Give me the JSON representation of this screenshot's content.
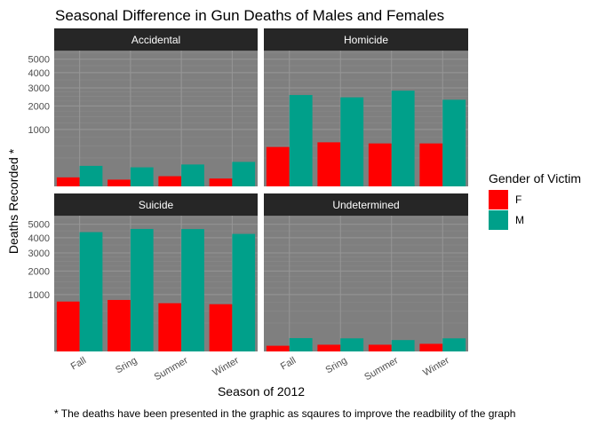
{
  "chart_data": {
    "type": "bar",
    "title": "Seasonal Difference in Gun Deaths of Males and Females",
    "xlabel": "Season of 2012",
    "ylabel": "Deaths Recorded *",
    "caption": "* The deaths have been presented in the graphic as sqaures to improve the readbility of the graph",
    "y_scale": "sqrt",
    "ylim": [
      0,
      5700
    ],
    "yticks": [
      "1000",
      "2000",
      "3000",
      "4000",
      "5000"
    ],
    "categories": [
      "Fall",
      "Sring",
      "Summer",
      "Winter"
    ],
    "legend": {
      "title": "Gender of Victim",
      "position": "right",
      "entries": [
        "F",
        "M"
      ],
      "colors": [
        "#FF0000",
        "#00A08A"
      ]
    },
    "grid": true,
    "panels": [
      {
        "name": "Accidental",
        "series": [
          {
            "name": "F",
            "values": [
              25,
              14,
              32,
              19
            ]
          },
          {
            "name": "M",
            "values": [
              130,
              112,
              148,
              185
            ]
          }
        ]
      },
      {
        "name": "Homicide",
        "series": [
          {
            "name": "F",
            "values": [
              480,
              600,
              570,
              570
            ]
          },
          {
            "name": "M",
            "values": [
              2580,
              2450,
              2830,
              2320
            ]
          }
        ]
      },
      {
        "name": "Suicide",
        "series": [
          {
            "name": "F",
            "values": [
              770,
              820,
              720,
              690
            ]
          },
          {
            "name": "M",
            "values": [
              4400,
              4640,
              4630,
              4270
            ]
          }
        ]
      },
      {
        "name": "Undetermined",
        "series": [
          {
            "name": "F",
            "values": [
              10,
              14,
              14,
              18
            ]
          },
          {
            "name": "M",
            "values": [
              55,
              53,
              40,
              53
            ]
          }
        ]
      }
    ]
  }
}
